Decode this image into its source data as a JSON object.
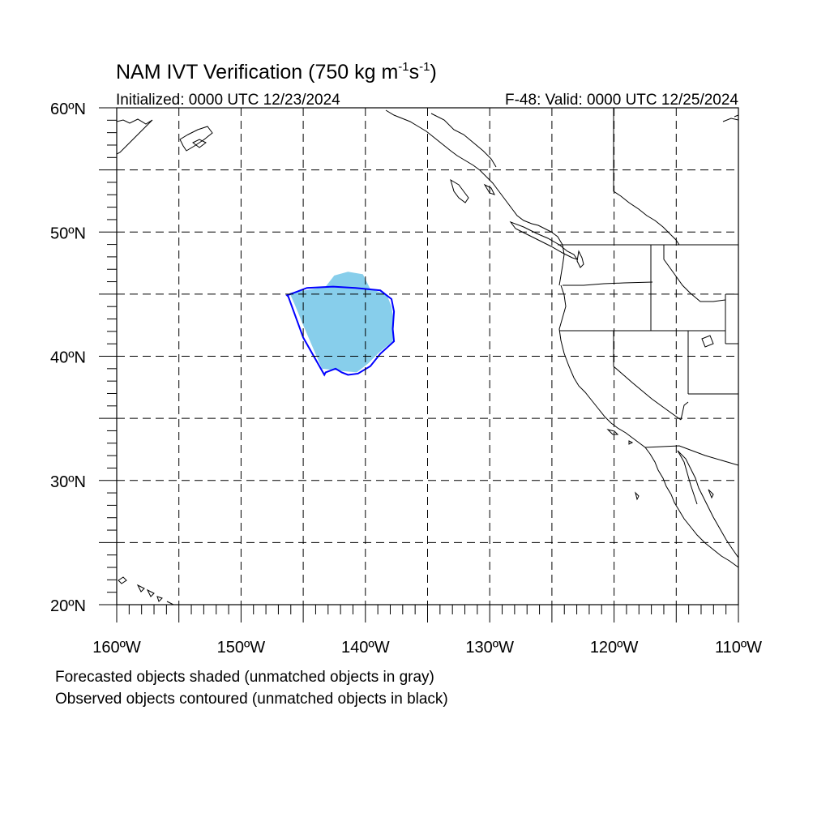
{
  "title": {
    "main": "NAM IVT Verification (750 kg m",
    "sup1": "-1",
    "mid": "s",
    "sup2": "-1",
    "end": ")"
  },
  "subtitle_left": "Initialized: 0000 UTC 12/23/2024",
  "subtitle_right": "F-48: Valid: 0000 UTC 12/25/2024",
  "map": {
    "lon_range": [
      -160,
      -110
    ],
    "lat_range": [
      20,
      60
    ],
    "grid_lons": [
      -155,
      -150,
      -145,
      -140,
      -135,
      -130,
      -125,
      -120,
      -115
    ],
    "grid_lats": [
      25,
      30,
      35,
      40,
      45,
      50,
      55
    ],
    "lat_labels": [
      {
        "lat": 60,
        "text": "60ºN"
      },
      {
        "lat": 50,
        "text": "50ºN"
      },
      {
        "lat": 40,
        "text": "40ºN"
      },
      {
        "lat": 30,
        "text": "30ºN"
      },
      {
        "lat": 20,
        "text": "20ºN"
      }
    ],
    "lon_labels": [
      {
        "lon": -160,
        "text": "160ºW"
      },
      {
        "lon": -150,
        "text": "150ºW"
      },
      {
        "lon": -140,
        "text": "140ºW"
      },
      {
        "lon": -130,
        "text": "130ºW"
      },
      {
        "lon": -120,
        "text": "120ºW"
      },
      {
        "lon": -110,
        "text": "110ºW"
      }
    ],
    "forecast_color": "#87ceeb",
    "observed_color": "#0000ff",
    "forecast_object": [
      [
        -146.1,
        45.1
      ],
      [
        -144.3,
        45.4
      ],
      [
        -143.2,
        45.6
      ],
      [
        -142.5,
        46.5
      ],
      [
        -141.4,
        46.8
      ],
      [
        -140.2,
        46.6
      ],
      [
        -139.6,
        45.4
      ],
      [
        -138.3,
        45.0
      ],
      [
        -137.9,
        44.0
      ],
      [
        -137.7,
        42.7
      ],
      [
        -137.8,
        41.2
      ],
      [
        -138.9,
        40.3
      ],
      [
        -139.8,
        39.4
      ],
      [
        -140.7,
        38.7
      ],
      [
        -141.8,
        38.8
      ],
      [
        -142.6,
        38.9
      ],
      [
        -143.5,
        39.0
      ],
      [
        -144.1,
        40.4
      ],
      [
        -145.0,
        42.5
      ],
      [
        -145.7,
        44.2
      ]
    ],
    "observed_object": [
      [
        -146.3,
        44.9
      ],
      [
        -144.7,
        45.5
      ],
      [
        -142.6,
        45.6
      ],
      [
        -140.8,
        45.5
      ],
      [
        -138.8,
        45.3
      ],
      [
        -137.9,
        44.6
      ],
      [
        -137.7,
        43.6
      ],
      [
        -137.8,
        42.2
      ],
      [
        -137.7,
        41.2
      ],
      [
        -138.8,
        40.2
      ],
      [
        -139.6,
        39.2
      ],
      [
        -140.6,
        38.6
      ],
      [
        -141.4,
        38.5
      ],
      [
        -141.9,
        38.7
      ],
      [
        -142.4,
        39.0
      ],
      [
        -143.2,
        38.7
      ],
      [
        -143.3,
        38.5
      ],
      [
        -145.0,
        41.5
      ],
      [
        -146.2,
        44.8
      ]
    ]
  },
  "notes": [
    "Forecasted objects shaded (unmatched objects in gray)",
    "Observed objects contoured (unmatched objects in black)"
  ]
}
